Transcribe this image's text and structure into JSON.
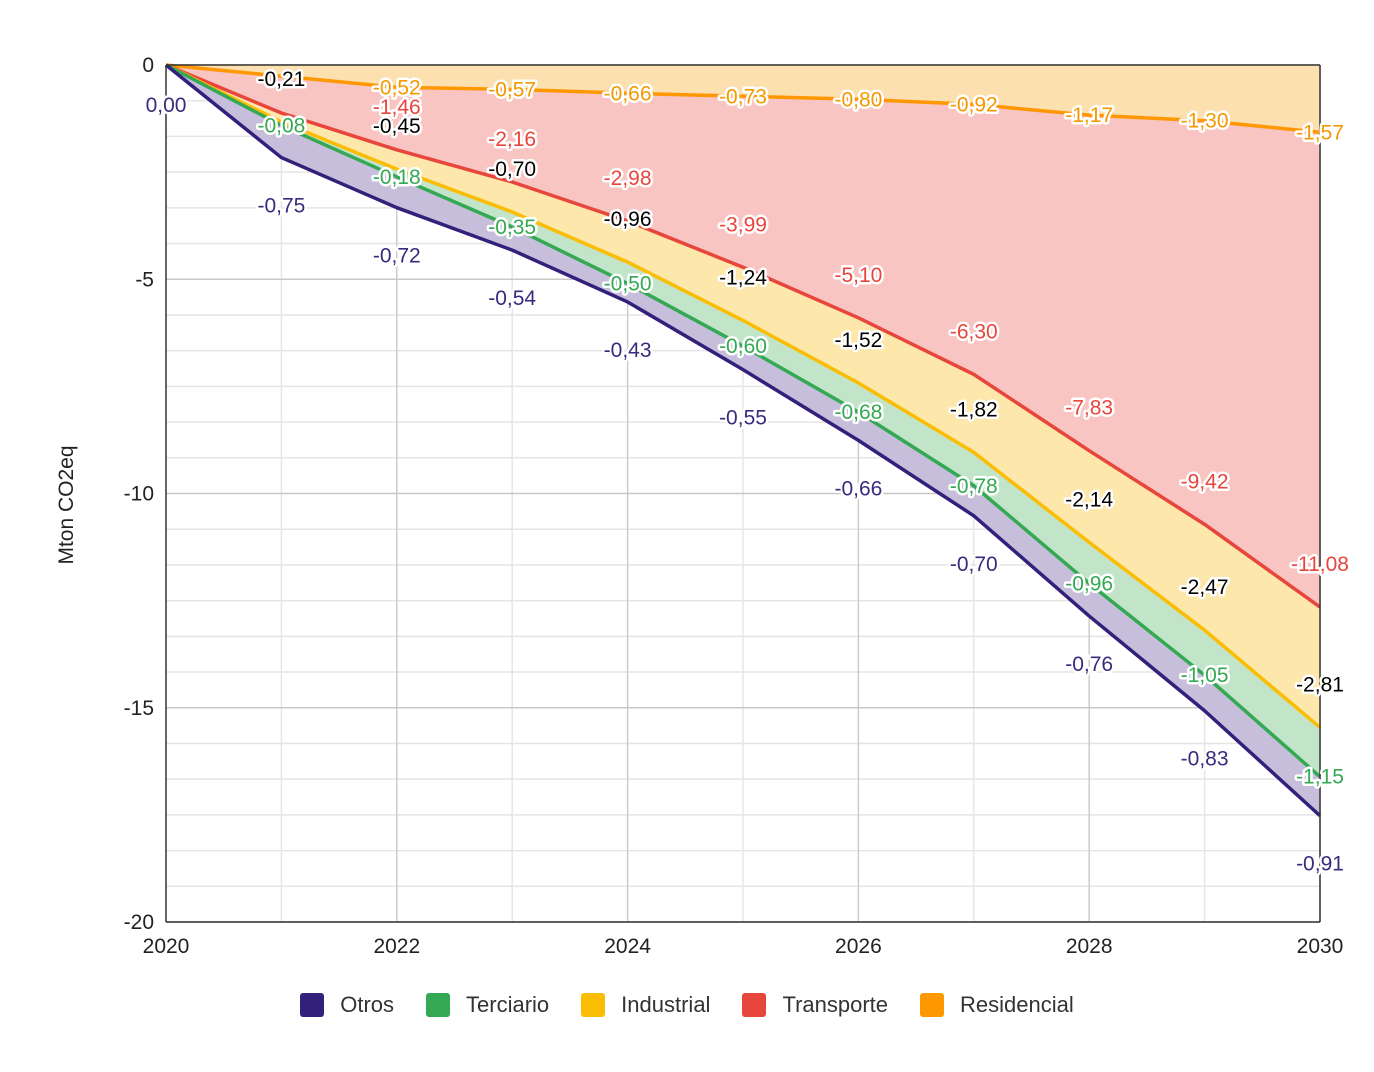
{
  "chart_data": {
    "type": "area",
    "stacked": true,
    "ylabel": "Mton CO2eq",
    "xlabel": "",
    "x": [
      2020,
      2021,
      2022,
      2023,
      2024,
      2025,
      2026,
      2027,
      2028,
      2029,
      2030
    ],
    "xticks": [
      "2020",
      "2022",
      "2024",
      "2026",
      "2028",
      "2030"
    ],
    "yticks": [
      "0",
      "-5",
      "-10",
      "-15",
      "-20"
    ],
    "ylim": [
      -20,
      0
    ],
    "xlim": [
      2020,
      2030
    ],
    "grid": true,
    "legend_position": "bottom",
    "series": [
      {
        "name": "Residencial",
        "color": "#ff9800",
        "fill": "#fde0b0",
        "values": [
          0,
          -0.26,
          -0.52,
          -0.57,
          -0.66,
          -0.73,
          -0.8,
          -0.92,
          -1.17,
          -1.3,
          -1.57
        ],
        "labels": [
          null,
          null,
          "-0,52",
          "-0,57",
          "-0,66",
          "-0,73",
          "-0,80",
          "-0,92",
          "-1,17",
          "-1,30",
          "-1,57"
        ]
      },
      {
        "name": "Transporte",
        "color": "#e8453c",
        "fill": "#f8c5c2",
        "values": [
          0,
          -0.86,
          -1.46,
          -2.16,
          -2.98,
          -3.99,
          -5.1,
          -6.3,
          -7.83,
          -9.42,
          -11.08
        ],
        "labels": [
          null,
          null,
          "-1,46",
          "-2,16",
          "-2,98",
          "-3,99",
          "-5,10",
          "-6,30",
          "-7,83",
          "-9,42",
          "-11,08"
        ]
      },
      {
        "name": "Industrial",
        "color": "#fbbc04",
        "fill": "#fde7ab",
        "values": [
          0,
          -0.21,
          -0.45,
          -0.7,
          -0.96,
          -1.24,
          -1.52,
          -1.82,
          -2.14,
          -2.47,
          -2.81
        ],
        "labels": [
          null,
          "-0,21",
          "-0,45",
          "-0,70",
          "-0,96",
          "-1,24",
          "-1,52",
          "-1,82",
          "-2,14",
          "-2,47",
          "-2,81"
        ]
      },
      {
        "name": "Terciario",
        "color": "#34a853",
        "fill": "#c2e5c9",
        "values": [
          0,
          -0.08,
          -0.18,
          -0.35,
          -0.5,
          -0.6,
          -0.68,
          -0.78,
          -0.96,
          -1.05,
          -1.15
        ],
        "labels": [
          null,
          "-0,08",
          "-0,18",
          "-0,35",
          "-0,50",
          "-0,60",
          "-0,68",
          "-0,78",
          "-0,96",
          "-1,05",
          "-1,15"
        ]
      },
      {
        "name": "Otros",
        "color": "#32207a",
        "fill": "#c6bedb",
        "values": [
          0,
          -0.75,
          -0.72,
          -0.54,
          -0.43,
          -0.55,
          -0.66,
          -0.7,
          -0.76,
          -0.83,
          -0.91
        ],
        "labels": [
          "0,00",
          "-0,75",
          "-0,72",
          "-0,54",
          "-0,43",
          "-0,55",
          "-0,66",
          "-0,70",
          "-0,76",
          "-0,83",
          "-0,91"
        ]
      }
    ],
    "label_colors": {
      "Residencial": "#f29900",
      "Transporte": "#e8453c",
      "Industrial": "#000000",
      "Terciario": "#34a853",
      "Otros": "#3c2a7e"
    }
  },
  "legend": [
    {
      "name": "Otros",
      "color": "#32207a"
    },
    {
      "name": "Terciario",
      "color": "#34a853"
    },
    {
      "name": "Industrial",
      "color": "#fbbc04"
    },
    {
      "name": "Transporte",
      "color": "#e8453c"
    },
    {
      "name": "Residencial",
      "color": "#ff9800"
    }
  ]
}
